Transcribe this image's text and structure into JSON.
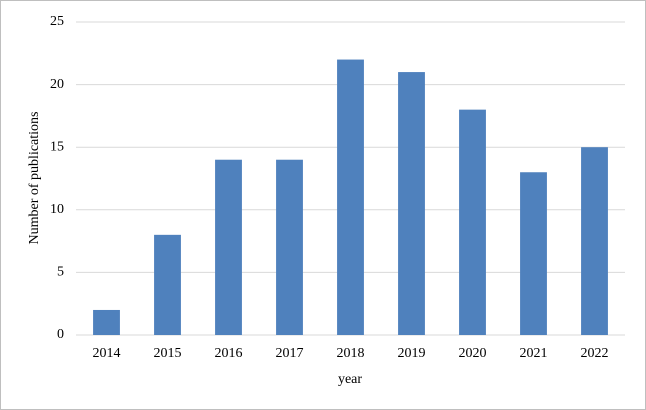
{
  "chart_data": {
    "type": "bar",
    "x_label": "year",
    "y_label": "Number of publications",
    "categories": [
      "2014",
      "2015",
      "2016",
      "2017",
      "2018",
      "2019",
      "2020",
      "2021",
      "2022"
    ],
    "values": [
      2,
      8,
      14,
      14,
      22,
      21,
      18,
      13,
      15
    ],
    "color": "#4f81bd",
    "ylim": [
      0,
      25
    ],
    "yticks": [
      0,
      5,
      10,
      15,
      20,
      25
    ],
    "grid": true
  }
}
